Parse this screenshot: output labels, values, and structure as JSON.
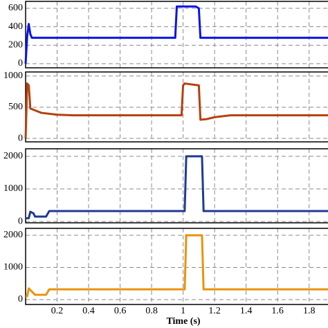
{
  "chart_data": [
    {
      "type": "line",
      "x": [
        0,
        0.01,
        0.02,
        0.03,
        0.04,
        0.1,
        0.95,
        0.96,
        1.08,
        1.1,
        1.11,
        1.92
      ],
      "series": [
        {
          "color": "#0a14e6",
          "values": [
            0,
            300,
            430,
            320,
            280,
            280,
            280,
            620,
            620,
            600,
            280,
            280
          ]
        }
      ],
      "xlim": [
        0,
        1.92
      ],
      "ylim": [
        -45,
        675
      ],
      "xticks": [
        0.2,
        0.4,
        0.6,
        0.8,
        1,
        1.2,
        1.4,
        1.6,
        1.8
      ],
      "yticks": [
        0,
        200,
        400,
        600
      ],
      "grid": true
    },
    {
      "type": "line",
      "x": [
        0,
        0.01,
        0.02,
        0.03,
        0.06,
        0.1,
        0.2,
        0.3,
        0.99,
        1.0,
        1.01,
        1.1,
        1.11,
        1.15,
        1.2,
        1.3,
        1.92
      ],
      "series": [
        {
          "color": "#b5400f",
          "values": [
            0,
            880,
            850,
            480,
            450,
            410,
            380,
            370,
            370,
            850,
            880,
            850,
            300,
            310,
            340,
            370,
            370
          ]
        }
      ],
      "xlim": [
        0,
        1.92
      ],
      "ylim": [
        -55,
        1065
      ],
      "xticks": [
        0.2,
        0.4,
        0.6,
        0.8,
        1,
        1.2,
        1.4,
        1.6,
        1.8
      ],
      "yticks": [
        0,
        500,
        1000
      ],
      "grid": true
    },
    {
      "type": "line",
      "x": [
        0,
        0.02,
        0.03,
        0.05,
        0.06,
        0.13,
        0.15,
        1.01,
        1.02,
        1.12,
        1.13,
        1.92
      ],
      "series": [
        {
          "color": "#1f3a93",
          "values": [
            100,
            100,
            300,
            250,
            150,
            150,
            320,
            320,
            2000,
            2000,
            320,
            320
          ]
        }
      ],
      "xlim": [
        0,
        1.92
      ],
      "ylim": [
        -40,
        2230
      ],
      "xticks": [
        0.2,
        0.4,
        0.6,
        0.8,
        1,
        1.2,
        1.4,
        1.6,
        1.8
      ],
      "yticks": [
        0,
        1000,
        2000
      ],
      "grid": true
    },
    {
      "type": "line",
      "x": [
        0,
        0.01,
        0.02,
        0.03,
        0.05,
        0.06,
        0.13,
        0.15,
        1.01,
        1.02,
        1.12,
        1.13,
        1.92
      ],
      "series": [
        {
          "color": "#e8930c",
          "values": [
            100,
            100,
            350,
            300,
            200,
            150,
            150,
            320,
            320,
            2000,
            2000,
            320,
            320
          ]
        }
      ],
      "xlim": [
        0,
        1.92
      ],
      "ylim": [
        -150,
        2215
      ],
      "xticks": [
        0.2,
        0.4,
        0.6,
        0.8,
        1,
        1.2,
        1.4,
        1.6,
        1.8
      ],
      "yticks": [
        0,
        1000,
        2000
      ],
      "grid": true,
      "xlabel": "Time (s)"
    }
  ]
}
